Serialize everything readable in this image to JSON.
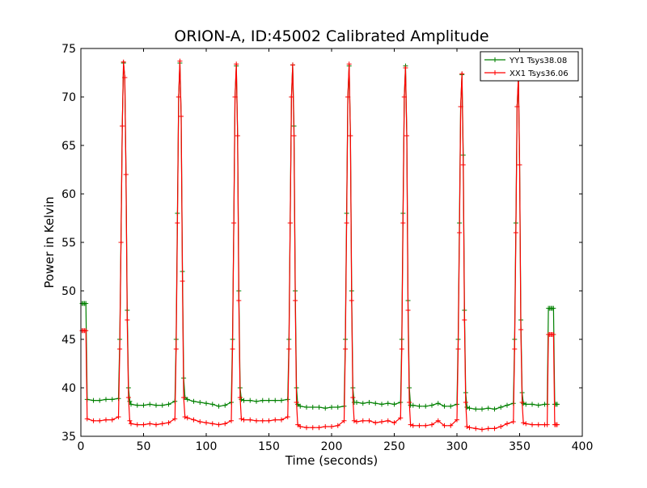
{
  "colors": {
    "yy1": "#008000",
    "xx1": "#ff0000",
    "axes": "#000000",
    "background": "#ffffff"
  },
  "chart_data": {
    "type": "line",
    "title": "ORION-A, ID:45002 Calibrated Amplitude",
    "xlabel": "Time (seconds)",
    "ylabel": "Power in Kelvin",
    "xlim": [
      0,
      400
    ],
    "ylim": [
      35,
      75
    ],
    "xticks": [
      0,
      50,
      100,
      150,
      200,
      250,
      300,
      350,
      400
    ],
    "yticks": [
      35,
      40,
      45,
      50,
      55,
      60,
      65,
      70,
      75
    ],
    "grid": false,
    "legend_position": "top-right",
    "marker": "plus",
    "series": [
      {
        "name": "YY1 Tsys38.08",
        "color": "#008000",
        "x": [
          1,
          2,
          3,
          4,
          5,
          10,
          15,
          20,
          25,
          30,
          31,
          32,
          33,
          34,
          35,
          36,
          37,
          38,
          39,
          40,
          45,
          50,
          55,
          60,
          65,
          70,
          75,
          76,
          77,
          78,
          79,
          80,
          81,
          82,
          83,
          85,
          90,
          95,
          100,
          105,
          110,
          115,
          120,
          121,
          122,
          123,
          124,
          125,
          126,
          127,
          128,
          130,
          135,
          140,
          145,
          150,
          155,
          160,
          165,
          166,
          167,
          168,
          169,
          170,
          171,
          172,
          173,
          175,
          180,
          185,
          190,
          195,
          200,
          205,
          210,
          211,
          212,
          213,
          214,
          215,
          216,
          217,
          218,
          220,
          225,
          230,
          235,
          240,
          245,
          250,
          255,
          256,
          257,
          258,
          259,
          260,
          261,
          262,
          263,
          265,
          270,
          275,
          280,
          285,
          290,
          295,
          300,
          301,
          302,
          303,
          304,
          305,
          306,
          307,
          308,
          310,
          315,
          320,
          325,
          330,
          335,
          340,
          345,
          346,
          347,
          348,
          349,
          350,
          351,
          352,
          353,
          355,
          360,
          365,
          370,
          372,
          373,
          374,
          375,
          376,
          377,
          378,
          379,
          380
        ],
        "y": [
          48.7,
          48.7,
          48.7,
          48.7,
          38.8,
          38.7,
          38.7,
          38.8,
          38.8,
          38.9,
          45,
          55,
          67,
          73.5,
          72,
          62,
          48,
          40,
          38.6,
          38.3,
          38.2,
          38.2,
          38.3,
          38.2,
          38.2,
          38.3,
          38.6,
          45,
          58,
          70,
          73.5,
          68,
          52,
          41,
          39,
          38.8,
          38.6,
          38.5,
          38.4,
          38.3,
          38.1,
          38.2,
          38.5,
          45,
          57,
          70,
          73.2,
          66,
          50,
          40,
          38.8,
          38.7,
          38.7,
          38.6,
          38.7,
          38.7,
          38.7,
          38.7,
          38.8,
          45,
          57,
          70,
          73.3,
          67,
          50,
          40,
          38.3,
          38.1,
          38.0,
          38.0,
          38.0,
          37.9,
          38.0,
          38.0,
          38.1,
          45,
          58,
          70,
          73.2,
          66,
          50,
          40,
          38.5,
          38.5,
          38.4,
          38.5,
          38.4,
          38.3,
          38.4,
          38.3,
          38.5,
          45,
          58,
          70,
          73.2,
          66,
          49,
          40,
          38.2,
          38.2,
          38.1,
          38.1,
          38.2,
          38.4,
          38.1,
          38.1,
          38.3,
          45,
          57,
          69,
          72.3,
          64,
          48,
          39.5,
          38.0,
          37.9,
          37.8,
          37.8,
          37.9,
          37.8,
          38.0,
          38.2,
          38.4,
          45,
          57,
          69,
          71.8,
          63,
          47,
          39.5,
          38.4,
          38.3,
          38.3,
          38.2,
          38.3,
          38.3,
          48.2,
          48.2,
          48.2,
          48.2,
          48.2,
          38.3,
          38.3,
          38.3
        ]
      },
      {
        "name": "XX1 Tsys36.06",
        "color": "#ff0000",
        "x": [
          1,
          2,
          3,
          4,
          5,
          10,
          15,
          20,
          25,
          30,
          31,
          32,
          33,
          34,
          35,
          36,
          37,
          38,
          39,
          40,
          45,
          50,
          55,
          60,
          65,
          70,
          75,
          76,
          77,
          78,
          79,
          80,
          81,
          82,
          83,
          85,
          90,
          95,
          100,
          105,
          110,
          115,
          120,
          121,
          122,
          123,
          124,
          125,
          126,
          127,
          128,
          130,
          135,
          140,
          145,
          150,
          155,
          160,
          165,
          166,
          167,
          168,
          169,
          170,
          171,
          172,
          173,
          175,
          180,
          185,
          190,
          195,
          200,
          205,
          210,
          211,
          212,
          213,
          214,
          215,
          216,
          217,
          218,
          220,
          225,
          230,
          235,
          240,
          245,
          250,
          255,
          256,
          257,
          258,
          259,
          260,
          261,
          262,
          263,
          265,
          270,
          275,
          280,
          285,
          290,
          295,
          300,
          301,
          302,
          303,
          304,
          305,
          306,
          307,
          308,
          310,
          315,
          320,
          325,
          330,
          335,
          340,
          345,
          346,
          347,
          348,
          349,
          350,
          351,
          352,
          353,
          355,
          360,
          365,
          370,
          372,
          373,
          374,
          375,
          376,
          377,
          378,
          379,
          380
        ],
        "y": [
          45.9,
          45.9,
          45.9,
          45.9,
          36.8,
          36.6,
          36.6,
          36.7,
          36.7,
          37.0,
          44,
          55,
          67,
          73.6,
          72,
          62,
          47,
          39,
          36.6,
          36.3,
          36.2,
          36.2,
          36.3,
          36.2,
          36.3,
          36.4,
          36.8,
          44,
          57,
          70,
          73.7,
          68,
          51,
          39,
          37,
          36.9,
          36.7,
          36.5,
          36.4,
          36.3,
          36.2,
          36.3,
          36.6,
          44,
          57,
          70,
          73.4,
          66,
          49,
          39,
          36.8,
          36.7,
          36.7,
          36.6,
          36.6,
          36.6,
          36.7,
          36.7,
          37.0,
          44,
          57,
          70,
          73.3,
          66,
          49,
          38.5,
          36.2,
          36.0,
          35.9,
          35.9,
          35.9,
          36.0,
          36.0,
          36.1,
          36.6,
          44,
          57,
          70,
          73.4,
          66,
          49,
          39,
          36.6,
          36.5,
          36.6,
          36.6,
          36.4,
          36.5,
          36.6,
          36.4,
          36.9,
          44,
          57,
          70,
          73.0,
          66,
          48,
          38.5,
          36.2,
          36.1,
          36.1,
          36.1,
          36.2,
          36.6,
          36.1,
          36.1,
          36.7,
          44,
          56,
          69,
          72.4,
          63,
          47,
          38.5,
          36.0,
          35.9,
          35.8,
          35.7,
          35.8,
          35.8,
          36.0,
          36.3,
          36.5,
          44,
          56,
          69,
          72.2,
          63,
          46,
          38.5,
          36.4,
          36.3,
          36.2,
          36.2,
          36.2,
          36.2,
          45.5,
          45.5,
          45.5,
          45.5,
          45.5,
          36.2,
          36.2,
          36.2
        ]
      }
    ]
  }
}
